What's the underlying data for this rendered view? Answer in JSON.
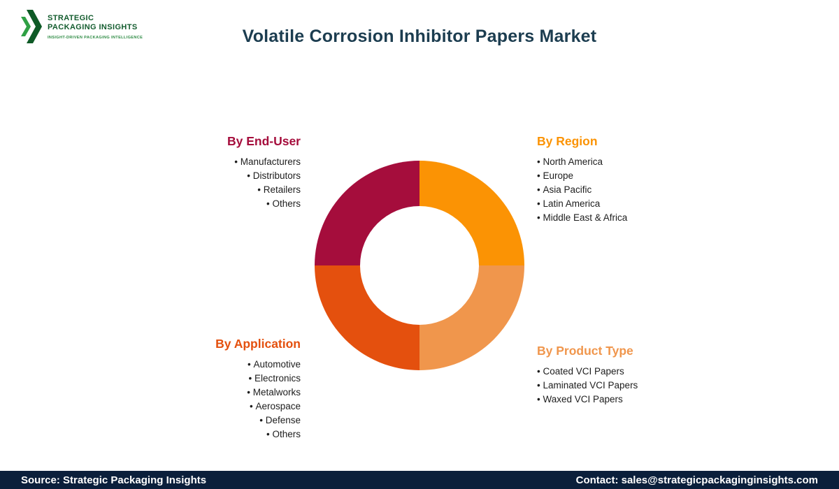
{
  "logo": {
    "line1": "STRATEGIC",
    "line2": "PACKAGING INSIGHTS",
    "tagline": "INSIGHT-DRIVEN PACKAGING INTELLIGENCE"
  },
  "header": {
    "title": "Volatile Corrosion Inhibitor Papers Market"
  },
  "segments": [
    {
      "heading": "By End-User",
      "color": "#A50D3C",
      "items": [
        "Manufacturers",
        "Distributors",
        "Retailers",
        "Others"
      ]
    },
    {
      "heading": "By Region",
      "color": "#FB9304",
      "items": [
        "North America",
        "Europe",
        "Asia Pacific",
        "Latin America",
        "Middle East & Africa"
      ]
    },
    {
      "heading": "By Application",
      "color": "#E4500E",
      "items": [
        "Automotive",
        "Electronics",
        "Metalworks",
        "Aerospace",
        "Defense",
        "Others"
      ]
    },
    {
      "heading": "By Product Type",
      "color": "#F0964C",
      "items": [
        "Coated VCI Papers",
        "Laminated VCI Papers",
        "Waxed VCI Papers"
      ]
    }
  ],
  "chart_data": {
    "type": "pie",
    "donut": true,
    "inner_radius_ratio": 0.57,
    "start_angle_deg": 0,
    "direction": "clockwise",
    "title": "Market segmentation donut (four equal quadrants)",
    "slices": [
      {
        "label": "By Region",
        "value": 25,
        "color": "#FB9304"
      },
      {
        "label": "By Product Type",
        "value": 25,
        "color": "#F0964C"
      },
      {
        "label": "By Application",
        "value": 25,
        "color": "#E4500E"
      },
      {
        "label": "By End-User",
        "value": 25,
        "color": "#A50D3C"
      }
    ]
  },
  "footer": {
    "source": "Source: Strategic Packaging Insights",
    "contact": "Contact: sales@strategicpackaginginsights.com"
  },
  "colors": {
    "title": "#1C3D50",
    "footer_bg": "#0B1F3B",
    "logo_green_dark": "#0E5A26",
    "logo_green_light": "#2FA044",
    "logo_text": "#135C2E",
    "logo_tagline": "#2E8B44"
  }
}
